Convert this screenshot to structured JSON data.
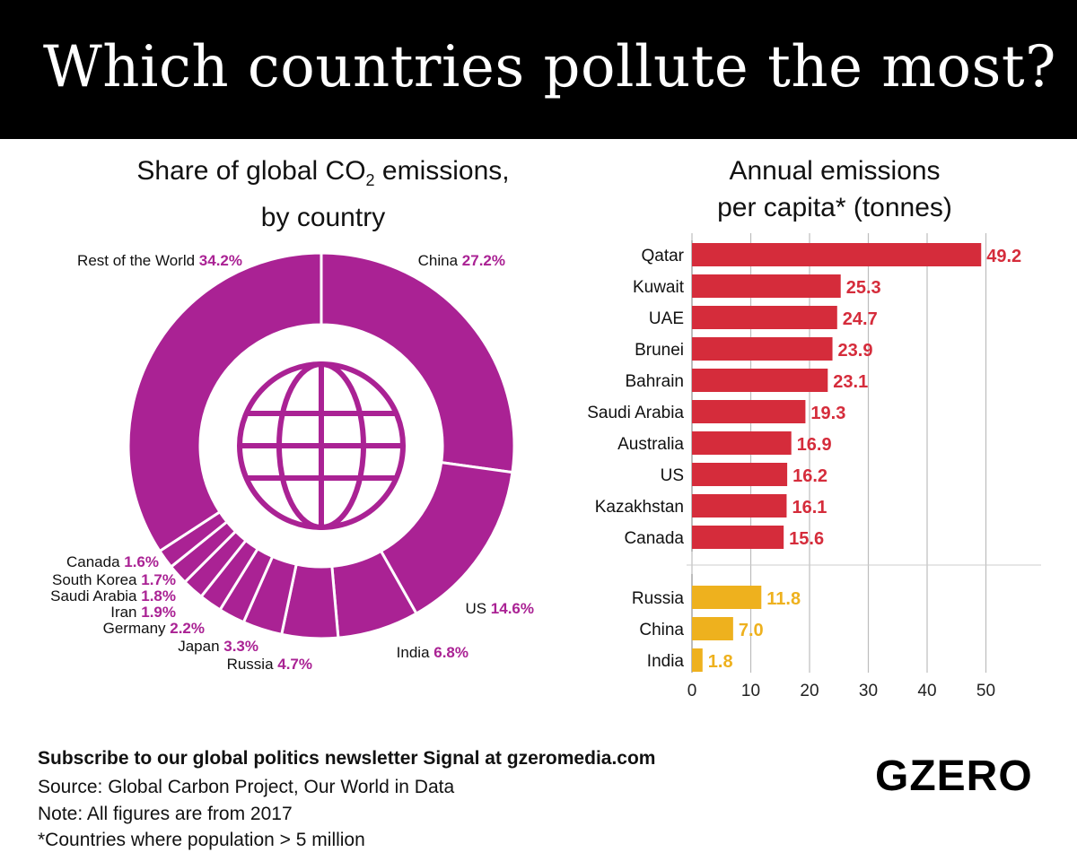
{
  "title": "Which countries pollute the most?",
  "colors": {
    "donut": "#aa2294",
    "bar_high": "#d52c3b",
    "bar_low": "#eeb11e",
    "header_bg": "#000000"
  },
  "donut_chart": {
    "title_line1_pre": "Share of global CO",
    "title_line1_sub": "2",
    "title_line1_post": " emissions,",
    "title_line2": "by country",
    "center_icon": "globe-icon"
  },
  "bar_chart": {
    "title_line1": "Annual emissions",
    "title_line2": "per capita* (tonnes)"
  },
  "chart_data": [
    {
      "type": "pie",
      "title": "Share of global CO2 emissions, by country",
      "categories": [
        "China",
        "US",
        "India",
        "Russia",
        "Japan",
        "Germany",
        "Iran",
        "Saudi Arabia",
        "South Korea",
        "Canada",
        "Rest of the World"
      ],
      "values": [
        27.2,
        14.6,
        6.8,
        4.7,
        3.3,
        2.2,
        1.9,
        1.8,
        1.7,
        1.6,
        34.2
      ],
      "labels": [
        "27.2%",
        "14.6%",
        "6.8%",
        "4.7%",
        "3.3%",
        "2.2%",
        "1.9%",
        "1.8%",
        "1.7%",
        "1.6%",
        "34.2%"
      ],
      "unit": "%"
    },
    {
      "type": "bar",
      "orientation": "horizontal",
      "title": "Annual emissions per capita* (tonnes)",
      "categories": [
        "Qatar",
        "Kuwait",
        "UAE",
        "Brunei",
        "Bahrain",
        "Saudi Arabia",
        "Australia",
        "US",
        "Kazakhstan",
        "Canada",
        "Russia",
        "China",
        "India"
      ],
      "values": [
        49.2,
        25.3,
        24.7,
        23.9,
        23.1,
        19.3,
        16.9,
        16.2,
        16.1,
        15.6,
        11.8,
        7.0,
        1.8
      ],
      "labels": [
        "49.2",
        "25.3",
        "24.7",
        "23.9",
        "23.1",
        "19.3",
        "16.9",
        "16.2",
        "16.1",
        "15.6",
        "11.8",
        "7.0",
        "1.8"
      ],
      "groups": [
        "top",
        "top",
        "top",
        "top",
        "top",
        "top",
        "top",
        "top",
        "top",
        "top",
        "highlight",
        "highlight",
        "highlight"
      ],
      "xlim": [
        0,
        50
      ],
      "xticks": [
        "0",
        "10",
        "20",
        "30",
        "40",
        "50"
      ],
      "grid": true
    }
  ],
  "footer": {
    "subscribe": "Subscribe to our global politics newsletter Signal at gzeromedia.com",
    "source": "Source: Global Carbon Project, Our World in Data",
    "note": "Note: All figures are from 2017",
    "footnote": "*Countries where population > 5 million",
    "logo": "GZERO"
  }
}
